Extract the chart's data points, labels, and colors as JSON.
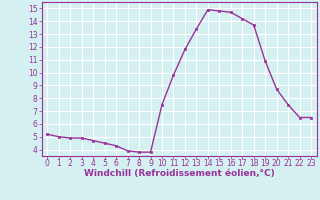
{
  "x": [
    0,
    1,
    2,
    3,
    4,
    5,
    6,
    7,
    8,
    9,
    10,
    11,
    12,
    13,
    14,
    15,
    16,
    17,
    18,
    19,
    20,
    21,
    22,
    23
  ],
  "y": [
    5.2,
    5.0,
    4.9,
    4.9,
    4.7,
    4.5,
    4.3,
    3.9,
    3.8,
    3.8,
    7.5,
    9.8,
    11.8,
    13.4,
    14.9,
    14.8,
    14.7,
    14.2,
    13.7,
    10.9,
    8.7,
    7.5,
    6.5,
    6.5
  ],
  "line_color": "#993399",
  "marker": "s",
  "markersize": 2.0,
  "linewidth": 1.0,
  "xlabel": "Windchill (Refroidissement éolien,°C)",
  "xlabel_fontsize": 6.5,
  "ylim": [
    3.5,
    15.5
  ],
  "xlim": [
    -0.5,
    23.5
  ],
  "yticks": [
    4,
    5,
    6,
    7,
    8,
    9,
    10,
    11,
    12,
    13,
    14,
    15
  ],
  "xticks": [
    0,
    1,
    2,
    3,
    4,
    5,
    6,
    7,
    8,
    9,
    10,
    11,
    12,
    13,
    14,
    15,
    16,
    17,
    18,
    19,
    20,
    21,
    22,
    23
  ],
  "tick_fontsize": 5.5,
  "bg_color": "#d4f0f0",
  "grid_color": "#ffffff",
  "spine_color": "#993399"
}
